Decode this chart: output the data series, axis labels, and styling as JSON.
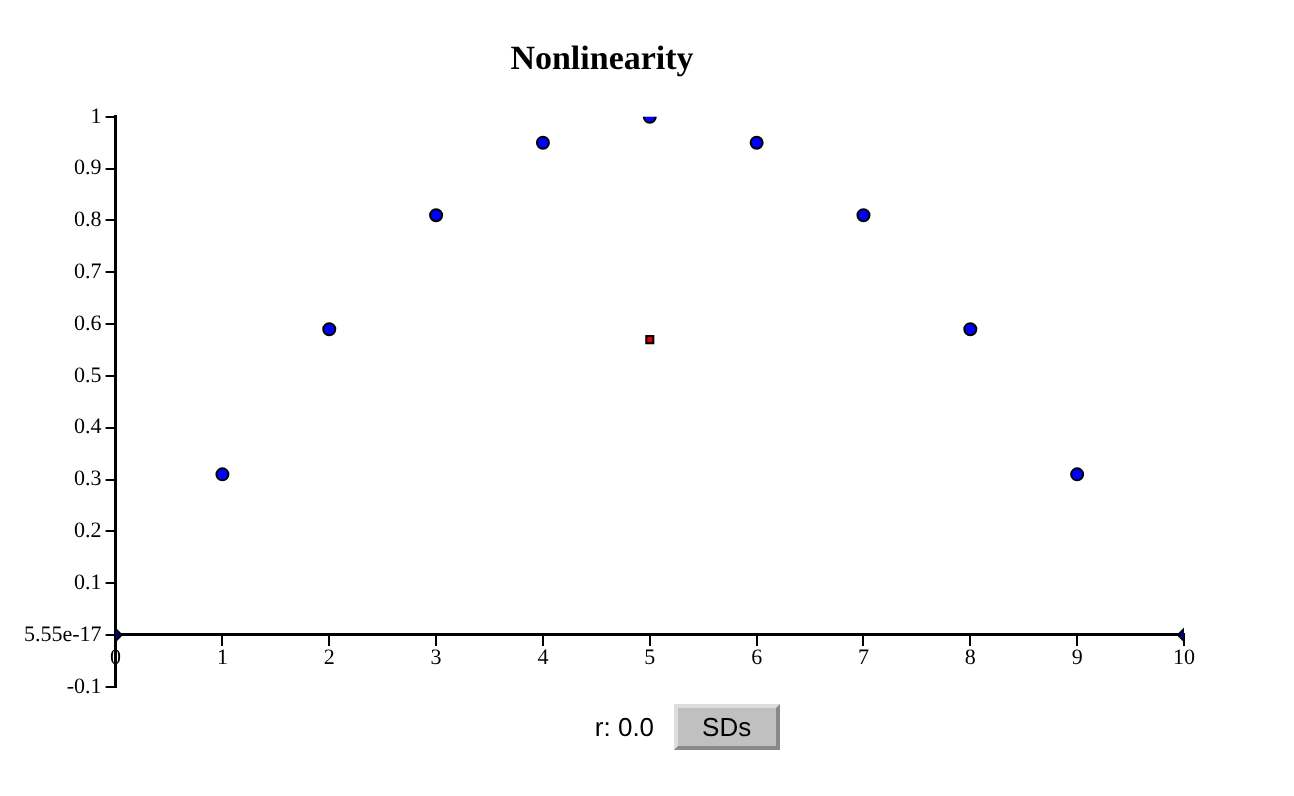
{
  "chart_data": {
    "type": "scatter",
    "title": "Nonlinearity",
    "series": [
      {
        "x": [
          1,
          2,
          3,
          4,
          5,
          6,
          7,
          8,
          9
        ],
        "values": [
          0.31,
          0.59,
          0.81,
          0.95,
          1.0,
          0.95,
          0.81,
          0.59,
          0.31
        ],
        "color": "#0000ff",
        "marker": "circle"
      },
      {
        "x": [
          5
        ],
        "values": [
          0.57
        ],
        "color": "#dd0000",
        "marker": "square"
      },
      {
        "x": [
          0,
          10
        ],
        "values": [
          0,
          0
        ],
        "color": "#000080",
        "marker": "diamond"
      }
    ],
    "xlim": [
      0,
      10
    ],
    "xticks": [
      0,
      1,
      2,
      3,
      4,
      5,
      6,
      7,
      8,
      9,
      10
    ],
    "ylim": [
      -0.1,
      1
    ],
    "yticks": [
      -0.1,
      {
        "value": 0,
        "label": "5.55e-17"
      },
      0.1,
      0.2,
      0.3,
      0.4,
      0.5,
      0.6,
      0.7,
      0.8,
      0.9,
      1
    ],
    "grid": false,
    "legend": false,
    "annotations": [
      "r: 0.0",
      "SDs"
    ]
  }
}
